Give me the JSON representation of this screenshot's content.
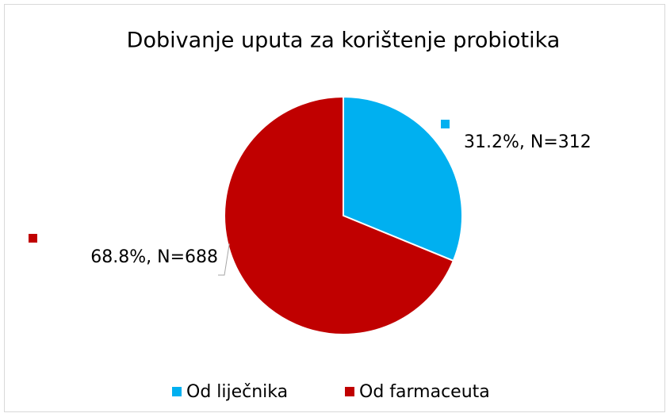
{
  "chart_data": {
    "type": "pie",
    "title": "Dobivanje uputa za korištenje probiotika",
    "categories": [
      "Od liječnika",
      "Od farmaceuta"
    ],
    "values": [
      31.2,
      68.8
    ],
    "value_labels": [
      "31.2%, N=312",
      "68.8%, N=688"
    ],
    "colors": [
      "#00b0f0",
      "#c00000"
    ],
    "legend": "bottom"
  }
}
